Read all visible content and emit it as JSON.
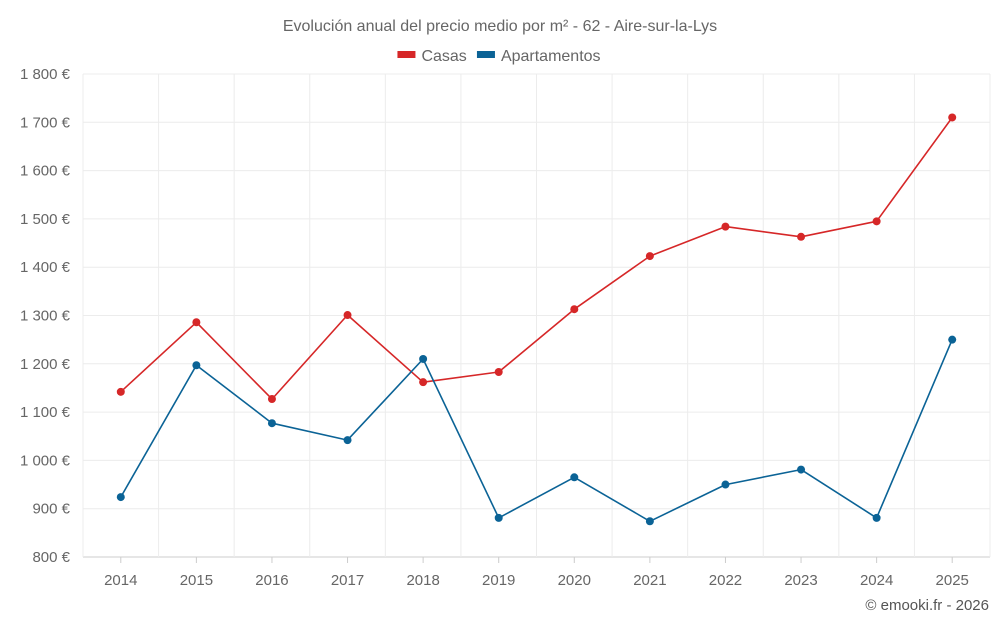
{
  "chart_data": {
    "type": "line",
    "title": "Evolución anual del precio medio por m² - 62 - Aire-sur-la-Lys",
    "x": [
      "2014",
      "2015",
      "2016",
      "2017",
      "2018",
      "2019",
      "2020",
      "2021",
      "2022",
      "2023",
      "2024",
      "2025"
    ],
    "series": [
      {
        "name": "Casas",
        "color": "#d62728",
        "values": [
          1142,
          1286,
          1127,
          1301,
          1162,
          1183,
          1313,
          1423,
          1484,
          1463,
          1495,
          1710
        ]
      },
      {
        "name": "Apartamentos",
        "color": "#0b6396",
        "values": [
          924,
          1197,
          1077,
          1042,
          1210,
          881,
          965,
          874,
          950,
          981,
          881,
          1250
        ]
      }
    ],
    "ylim": [
      800,
      1800
    ],
    "yticks": [
      800,
      900,
      1000,
      1100,
      1200,
      1300,
      1400,
      1500,
      1600,
      1700,
      1800
    ],
    "ytick_labels": [
      "800 €",
      "900 €",
      "1 000 €",
      "1 100 €",
      "1 200 €",
      "1 300 €",
      "1 400 €",
      "1 500 €",
      "1 600 €",
      "1 700 €",
      "1 800 €"
    ],
    "xlabel": "",
    "ylabel": "",
    "grid": true,
    "legend_position": "top-center"
  },
  "footer": "© emooki.fr - 2026"
}
